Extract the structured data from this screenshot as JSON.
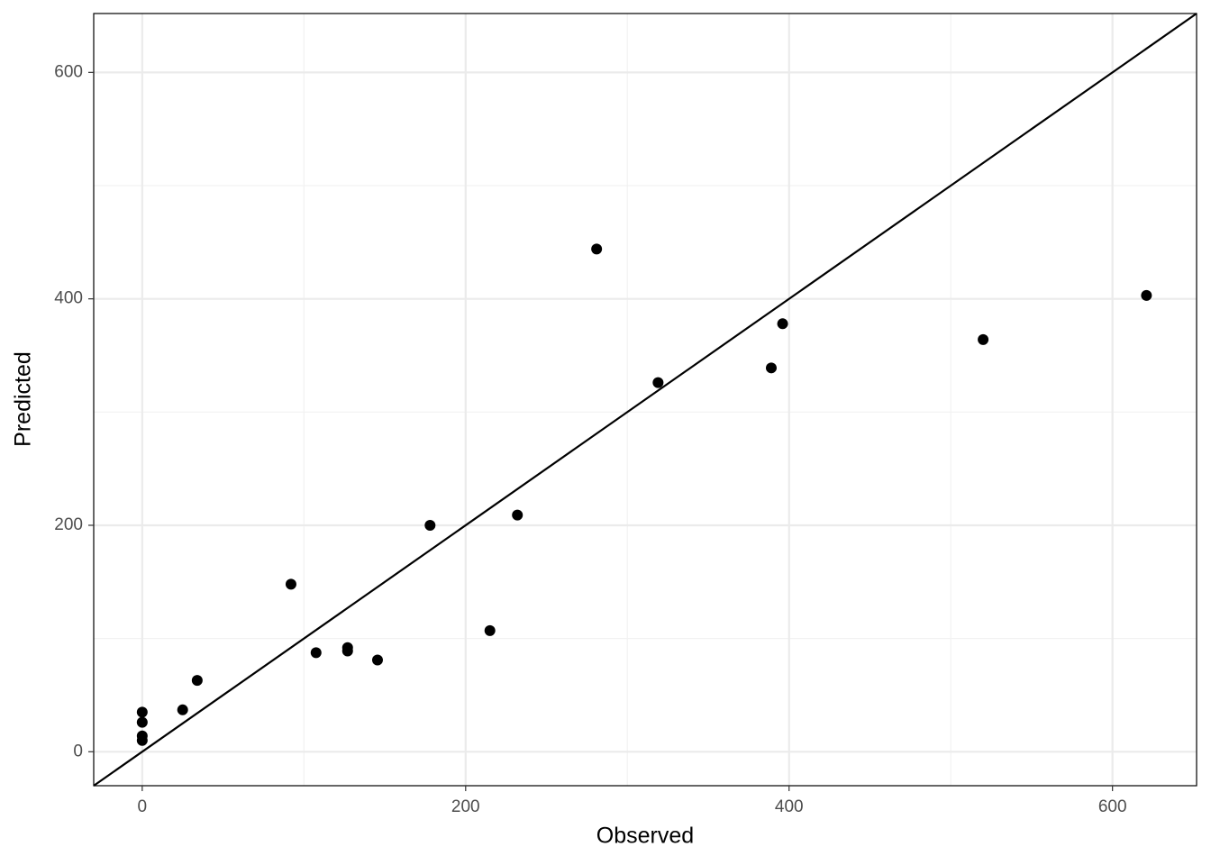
{
  "chart_data": {
    "type": "scatter",
    "x_label": "Observed",
    "y_label": "Predicted",
    "x": [
      0,
      0,
      0,
      0,
      25,
      34,
      92,
      107.5,
      127,
      127,
      145.5,
      178,
      215,
      232,
      281,
      319,
      389,
      396,
      520,
      621
    ],
    "y": [
      35,
      26,
      14,
      10,
      37,
      63,
      148,
      87.5,
      92,
      89,
      81,
      200,
      107,
      209,
      444,
      326,
      339,
      378,
      364,
      403
    ],
    "color": "#000000",
    "xlim": [
      -30,
      652
    ],
    "ylim": [
      -30,
      652
    ],
    "xticks": [
      0,
      200,
      400,
      600
    ],
    "yticks": [
      0,
      200,
      400,
      600
    ],
    "xminor": [
      100,
      300,
      500
    ],
    "yminor": [
      100,
      300,
      500
    ],
    "grid": true,
    "identity_line": true
  }
}
